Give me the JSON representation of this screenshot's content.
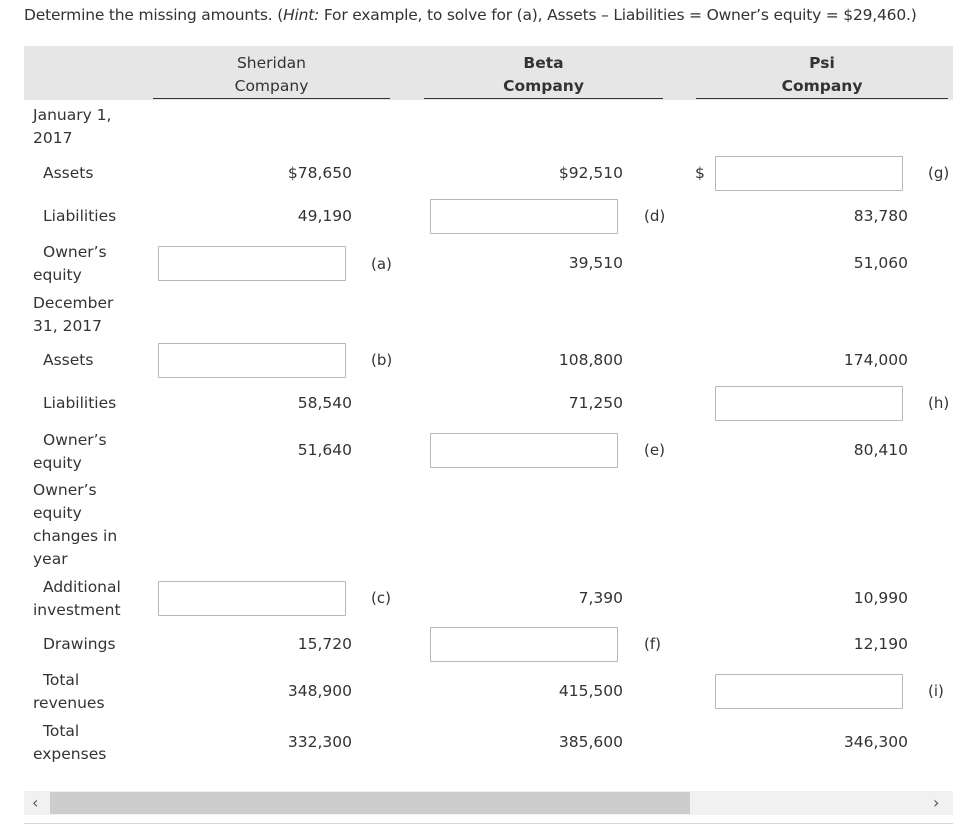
{
  "instruction": {
    "prefix": "Determine the missing amounts. (",
    "hint_label": "Hint:",
    "suffix": " For example, to solve for (a), Assets – Liabilities = Owner’s equity = $29,460.)"
  },
  "columns": [
    {
      "line1": "Sheridan",
      "line2": "Company"
    },
    {
      "line1": "Beta",
      "line2": "Company"
    },
    {
      "line1": "Psi",
      "line2": "Company"
    }
  ],
  "labels": {
    "jan_line1": "January 1,",
    "jan_line2": "2017",
    "assets": "Assets",
    "liabilities": "Liabilities",
    "owners_line1": "Owner’s",
    "owners_line2": "equity",
    "dec_line1": "December",
    "dec_line2": "31, 2017",
    "oec_line1": "Owner’s",
    "oec_line2": "equity",
    "oec_line3": "changes in",
    "oec_line4": "year",
    "addinv_line1": "Additional",
    "addinv_line2": "investment",
    "drawings": "Drawings",
    "totrev_line1": "Total",
    "totrev_line2": "revenues",
    "totexp_line1": "Total",
    "totexp_line2": "expenses"
  },
  "values": {
    "sheridan": {
      "assets_jan": "$78,650",
      "liabilities_jan": "49,190",
      "liabilities_dec": "58,540",
      "owners_equity_dec": "51,640",
      "drawings": "15,720",
      "total_revenues": "348,900",
      "total_expenses": "332,300"
    },
    "beta": {
      "assets_jan": "$92,510",
      "owners_equity_jan": "39,510",
      "assets_dec": "108,800",
      "liabilities_dec": "71,250",
      "additional_investment": "7,390",
      "total_revenues": "415,500",
      "total_expenses": "385,600"
    },
    "psi": {
      "dollar_sign": "$",
      "liabilities_jan": "83,780",
      "owners_equity_jan": "51,060",
      "assets_dec": "174,000",
      "owners_equity_dec": "80,410",
      "additional_investment": "10,990",
      "drawings": "12,190",
      "total_expenses": "346,300"
    }
  },
  "tags": {
    "a": "(a)",
    "b": "(b)",
    "c": "(c)",
    "d": "(d)",
    "e": "(e)",
    "f": "(f)",
    "g": "(g)",
    "h": "(h)",
    "i": "(i)"
  },
  "inputs": {
    "a": "",
    "b": "",
    "c": "",
    "d": "",
    "e": "",
    "f": "",
    "g": "",
    "h": "",
    "i": ""
  },
  "scroll": {
    "left_arrow": "‹",
    "right_arrow": "›"
  }
}
